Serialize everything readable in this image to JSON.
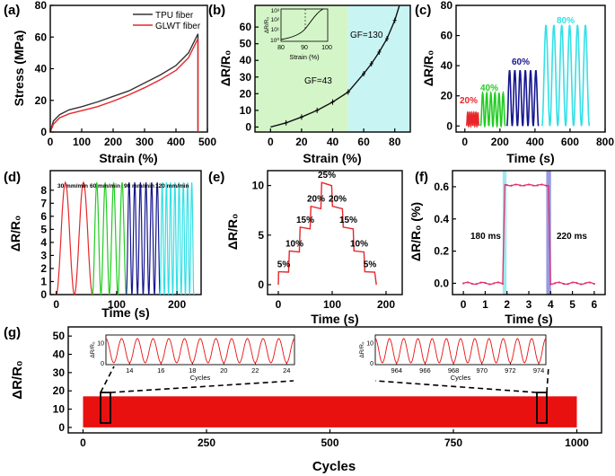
{
  "chart_data": [
    {
      "panel": "(a)",
      "type": "line",
      "xlabel": "Strain (%)",
      "ylabel": "Stress (MPa)",
      "xlim": [
        0,
        500
      ],
      "ylim": [
        0,
        80
      ],
      "xticks": [
        "0",
        "100",
        "200",
        "300",
        "400",
        "500"
      ],
      "yticks": [
        "0",
        "20",
        "40",
        "60",
        "80"
      ],
      "legend": "top-left",
      "series": [
        {
          "name": "TPU fiber",
          "color": "#333333",
          "x": [
            0,
            10,
            30,
            60,
            100,
            150,
            200,
            250,
            300,
            350,
            400,
            440,
            470,
            470
          ],
          "y": [
            0,
            7,
            11,
            14,
            16,
            19,
            22.5,
            26,
            31,
            36,
            42,
            50,
            62,
            0
          ]
        },
        {
          "name": "GLWT fiber",
          "color": "#e8262a",
          "x": [
            0,
            10,
            30,
            60,
            100,
            150,
            200,
            250,
            300,
            350,
            400,
            440,
            470,
            470
          ],
          "y": [
            0,
            5,
            9,
            11.5,
            13.5,
            16,
            19.5,
            23.5,
            28,
            33,
            39,
            47,
            59,
            0
          ]
        }
      ]
    },
    {
      "panel": "(b)",
      "type": "line",
      "xlabel": "Strain (%)",
      "ylabel": "ΔR/R₀",
      "xlim": [
        -10,
        90
      ],
      "ylim": [
        -3,
        73
      ],
      "xticks": [
        "0",
        "20",
        "40",
        "60",
        "80"
      ],
      "yticks": [
        "0",
        "10",
        "20",
        "30",
        "40",
        "50",
        "60"
      ],
      "regions": [
        {
          "from": -10,
          "to": 50,
          "color": "#d4f5c8"
        },
        {
          "from": 50,
          "to": 90,
          "color": "#c9f4f4"
        }
      ],
      "annotations": [
        "GF=43",
        "GF=130"
      ],
      "series": [
        {
          "name": "ΔR/R0",
          "color": "#111111",
          "x": [
            0,
            10,
            20,
            30,
            40,
            50,
            60,
            65,
            70,
            75,
            80,
            83
          ],
          "y": [
            0,
            2.5,
            6,
            10,
            15,
            21,
            32,
            38,
            45,
            53,
            64,
            73
          ]
        }
      ],
      "inset": {
        "xlabel": "Strain (%)",
        "ylabel": "ΔR/R₀",
        "xticks": [
          "80",
          "90",
          "100"
        ],
        "yticks": [
          "10⁰",
          "10¹",
          "10²",
          "10³"
        ]
      }
    },
    {
      "panel": "(c)",
      "type": "line",
      "xlabel": "Time (s)",
      "ylabel": "ΔR/R₀",
      "xlim": [
        -50,
        800
      ],
      "ylim": [
        -4,
        80
      ],
      "xticks": [
        "0",
        "200",
        "400",
        "600",
        "800"
      ],
      "yticks": [
        "0",
        "20",
        "40",
        "60",
        "80"
      ],
      "series": [
        {
          "name": "20%",
          "color": "#e8262a",
          "t0": 10,
          "t1": 80,
          "cycles": 6,
          "amp": 9
        },
        {
          "name": "40%",
          "color": "#22cc22",
          "t0": 90,
          "t1": 230,
          "cycles": 6,
          "amp": 22
        },
        {
          "name": "60%",
          "color": "#16168f",
          "t0": 240,
          "t1": 420,
          "cycles": 6,
          "amp": 37
        },
        {
          "name": "80%",
          "color": "#33e0e6",
          "t0": 440,
          "t1": 710,
          "cycles": 6,
          "amp": 67
        }
      ]
    },
    {
      "panel": "(d)",
      "type": "line",
      "xlabel": "Time (s)",
      "ylabel": "ΔR/R₀",
      "xlim": [
        -10,
        240
      ],
      "ylim": [
        0,
        9.5
      ],
      "xticks": [
        "0",
        "100",
        "200"
      ],
      "yticks": [
        "0",
        "1",
        "2",
        "3",
        "4",
        "5",
        "6",
        "7",
        "8"
      ],
      "series": [
        {
          "name": "30 mm/min",
          "color": "#e8262a",
          "t0": 0,
          "t1": 60,
          "cycles": 2,
          "amp": 8.6
        },
        {
          "name": "60 mm/min",
          "color": "#22cc22",
          "t0": 60,
          "t1": 116,
          "cycles": 4,
          "amp": 8.6
        },
        {
          "name": "90 mm/min",
          "color": "#16168f",
          "t0": 116,
          "t1": 172,
          "cycles": 6,
          "amp": 8.6
        },
        {
          "name": "120 mm/min",
          "color": "#33e0e6",
          "t0": 172,
          "t1": 228,
          "cycles": 8,
          "amp": 8.6
        }
      ]
    },
    {
      "panel": "(e)",
      "type": "line",
      "xlabel": "Time (s)",
      "ylabel": "ΔR/R₀",
      "xlim": [
        -20,
        230
      ],
      "ylim": [
        -1,
        11.5
      ],
      "xticks": [
        "0",
        "100",
        "200"
      ],
      "yticks": [
        "0",
        "5",
        "10"
      ],
      "step_labels": [
        "5%",
        "10%",
        "15%",
        "20%",
        "25%",
        "20%",
        "15%",
        "10%",
        "5%"
      ],
      "series": [
        {
          "name": "step",
          "color": "#e8262a",
          "levels": [
            1.3,
            3.4,
            5.8,
            7.9,
            10.3,
            7.9,
            5.8,
            3.4,
            1.3
          ],
          "t": [
            0,
            20,
            40,
            60,
            80,
            100,
            120,
            140,
            160,
            180
          ]
        }
      ]
    },
    {
      "panel": "(f)",
      "type": "line",
      "xlabel": "Time (s)",
      "ylabel": "ΔR/R₀ (%)",
      "xlim": [
        -0.5,
        6.5
      ],
      "ylim": [
        -0.07,
        0.7
      ],
      "xticks": [
        "0",
        "1",
        "2",
        "3",
        "4",
        "5",
        "6"
      ],
      "yticks": [
        "0.0",
        "0.2",
        "0.4",
        "0.6"
      ],
      "regions": [
        {
          "from": 1.8,
          "to": 1.98,
          "color": "#9fe8f0"
        },
        {
          "from": 3.8,
          "to": 4.02,
          "color": "#9a99e0"
        }
      ],
      "annotations": [
        "180 ms",
        "220 ms"
      ],
      "series": [
        {
          "name": "response",
          "color": "#e0306a",
          "low": 0.0,
          "high": 0.61,
          "rise": 1.9,
          "fall": 3.92
        }
      ]
    },
    {
      "panel": "(g)",
      "type": "line",
      "xlabel": "Cycles",
      "ylabel": "ΔR/R₀",
      "xlim": [
        -30,
        1050
      ],
      "ylim": [
        -3,
        55
      ],
      "xticks": [
        "0",
        "250",
        "500",
        "750",
        "1000"
      ],
      "yticks": [
        "0",
        "10",
        "20",
        "30",
        "40",
        "50"
      ],
      "series": [
        {
          "name": "cyclic",
          "color": "#e8110f",
          "cycles": 1000,
          "amp": 17
        }
      ],
      "insets": [
        {
          "xlabel": "Cycles",
          "ylabel": "ΔR/R₀",
          "xticks": [
            "14",
            "16",
            "18",
            "20",
            "22",
            "24"
          ],
          "yticks": [
            "0",
            "10"
          ],
          "xlim": [
            12.5,
            24.5
          ]
        },
        {
          "xlabel": "Cycles",
          "ylabel": "ΔR/R₀",
          "xticks": [
            "964",
            "966",
            "968",
            "970",
            "972",
            "974"
          ],
          "yticks": [
            "0",
            "10"
          ],
          "xlim": [
            962.5,
            974.5
          ]
        }
      ]
    }
  ]
}
